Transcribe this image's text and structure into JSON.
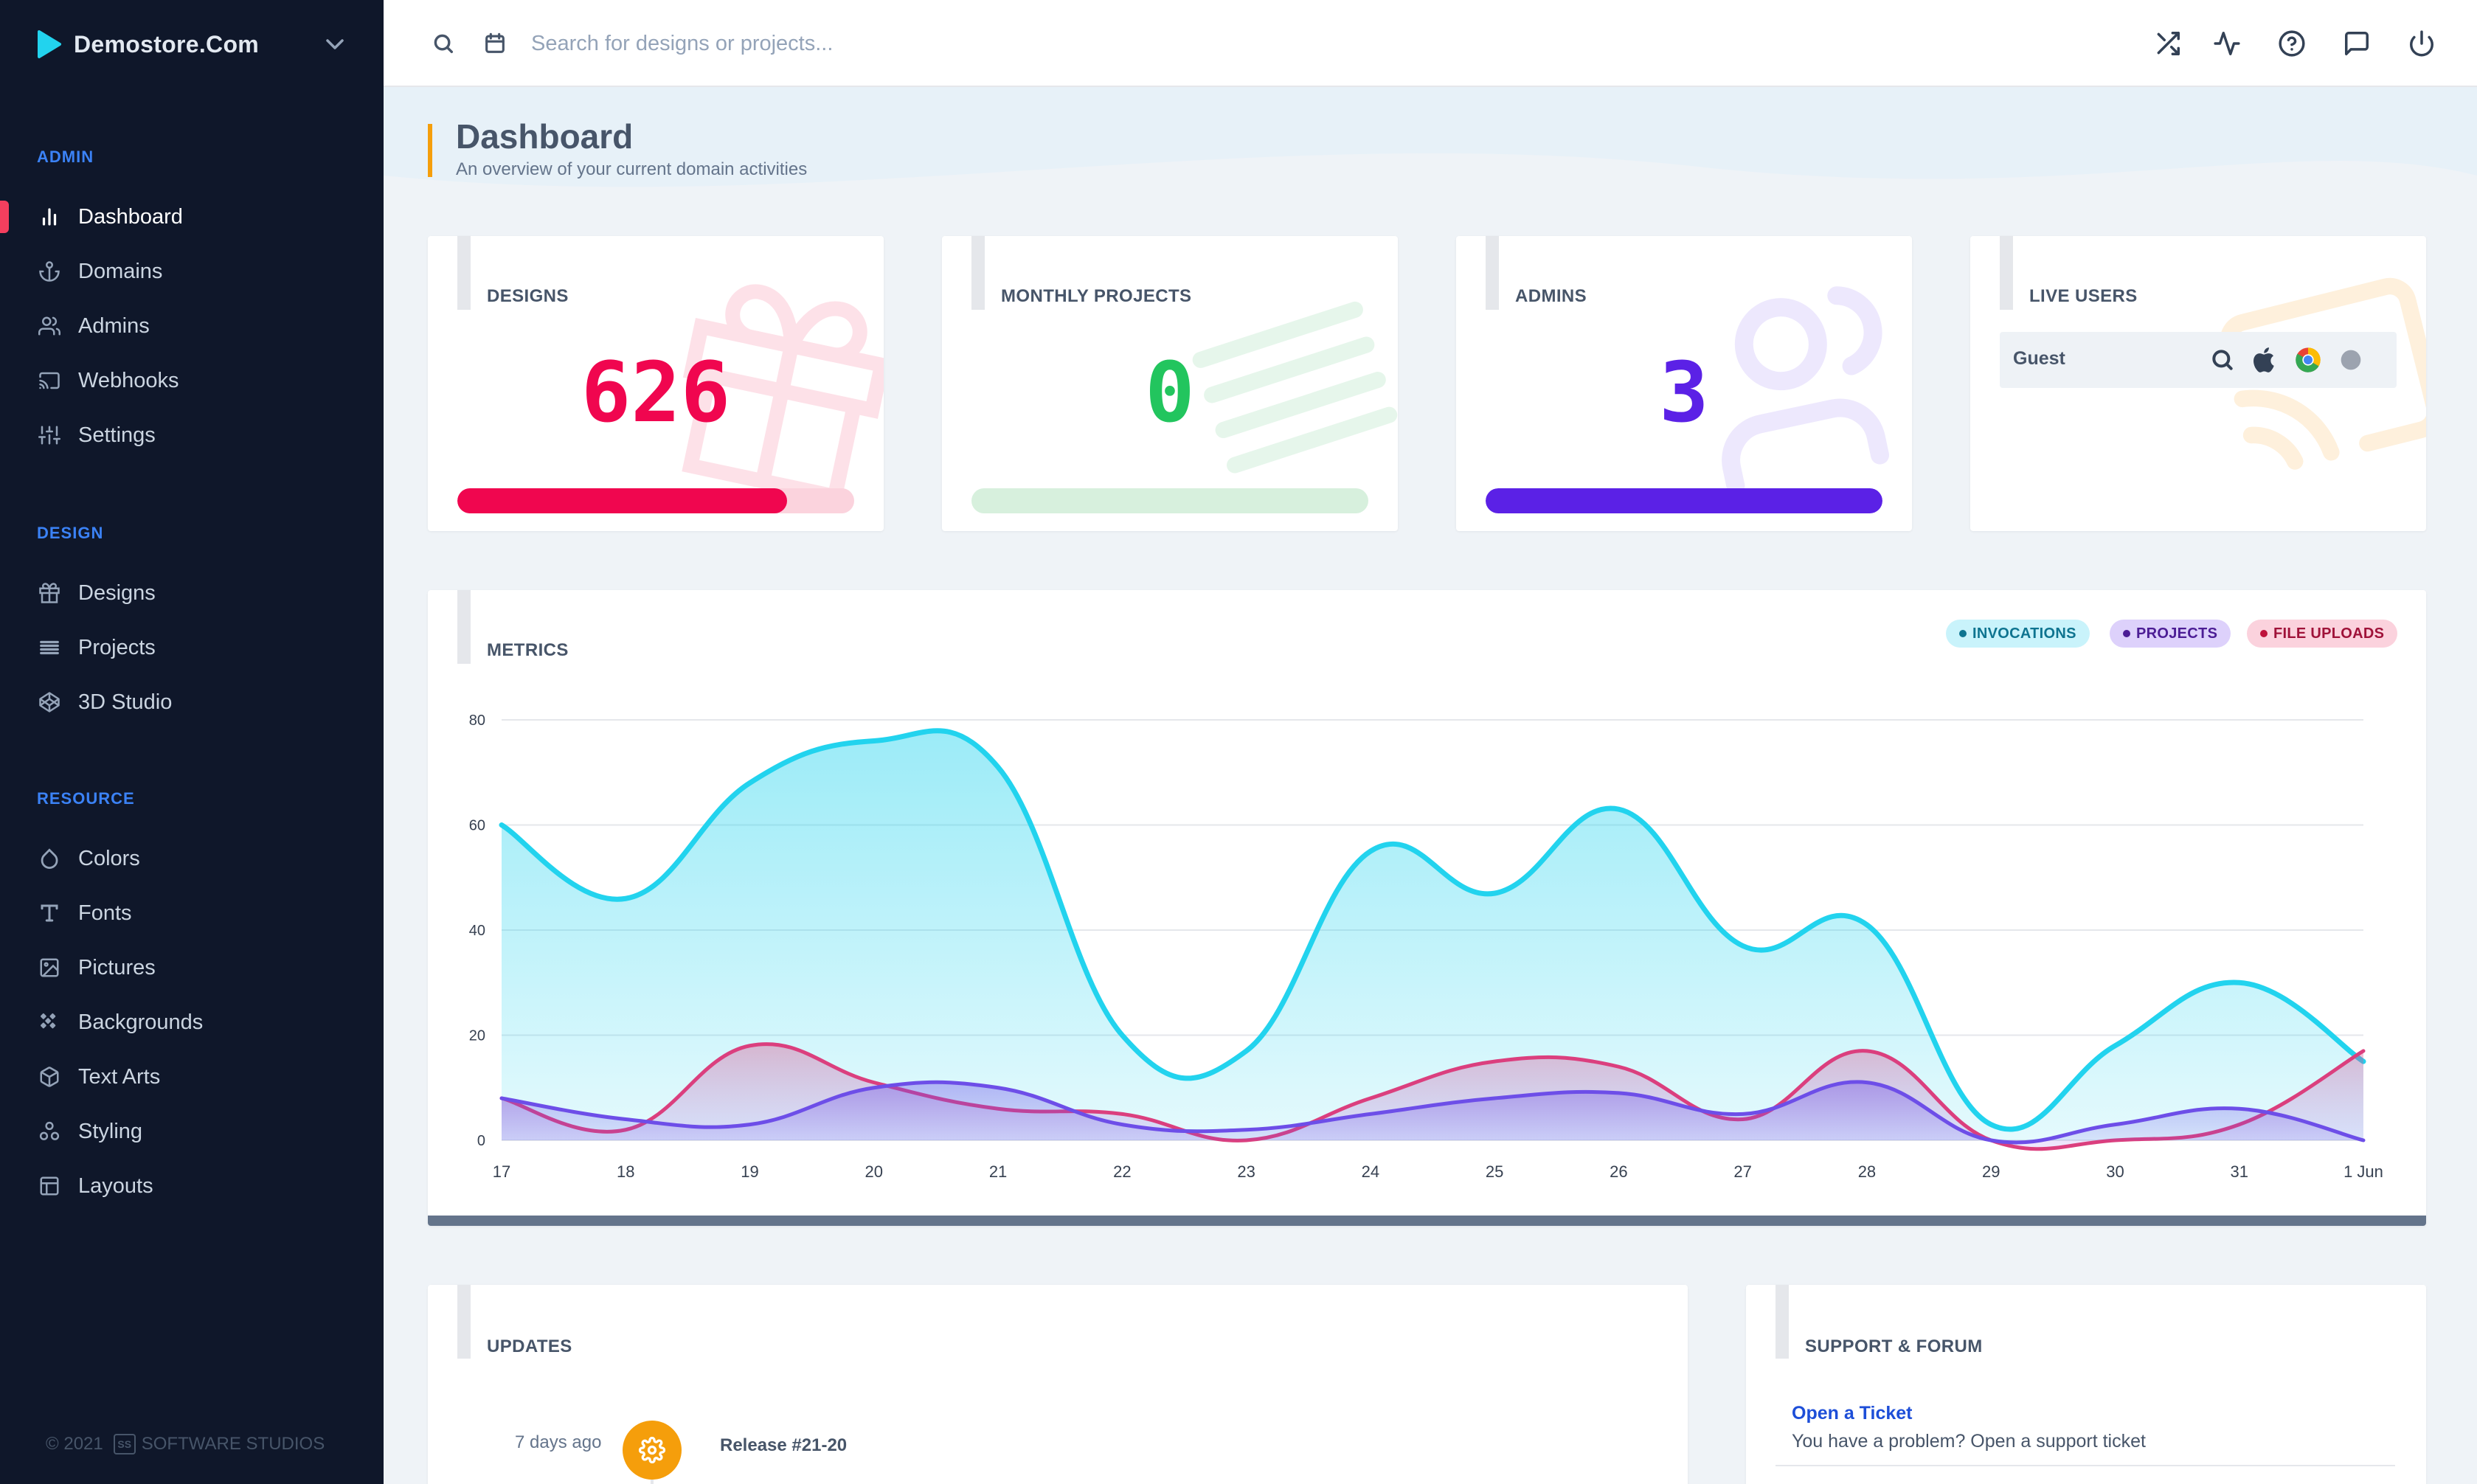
{
  "brand": {
    "name": "Demostore.Com"
  },
  "search": {
    "placeholder": "Search for designs or projects..."
  },
  "sidebar": {
    "sections": [
      {
        "title": "ADMIN",
        "items": [
          {
            "label": "Dashboard",
            "icon": "bar-chart-icon",
            "active": true
          },
          {
            "label": "Domains",
            "icon": "anchor-icon"
          },
          {
            "label": "Admins",
            "icon": "users-icon"
          },
          {
            "label": "Webhooks",
            "icon": "cast-icon"
          },
          {
            "label": "Settings",
            "icon": "sliders-icon"
          }
        ]
      },
      {
        "title": "DESIGN",
        "items": [
          {
            "label": "Designs",
            "icon": "gift-icon"
          },
          {
            "label": "Projects",
            "icon": "list-icon"
          },
          {
            "label": "3D Studio",
            "icon": "codepen-icon"
          }
        ]
      },
      {
        "title": "RESOURCE",
        "items": [
          {
            "label": "Colors",
            "icon": "droplet-icon"
          },
          {
            "label": "Fonts",
            "icon": "type-icon"
          },
          {
            "label": "Pictures",
            "icon": "image-icon"
          },
          {
            "label": "Backgrounds",
            "icon": "pattern-icon"
          },
          {
            "label": "Text Arts",
            "icon": "box-icon"
          },
          {
            "label": "Styling",
            "icon": "shapes-icon"
          },
          {
            "label": "Layouts",
            "icon": "layout-icon"
          }
        ]
      }
    ],
    "footer": {
      "copyright": "© 2021",
      "badge": "SS",
      "company": "SOFTWARE STUDIOS"
    }
  },
  "topbar": {
    "icons": [
      "shuffle-icon",
      "activity-icon",
      "help-circle-icon",
      "message-icon",
      "power-icon"
    ]
  },
  "page": {
    "title": "Dashboard",
    "subtitle": "An overview of your current domain activities"
  },
  "stats": {
    "designs": {
      "title": "DESIGNS",
      "value": "626",
      "progress": 0.83,
      "color": "#f0064f",
      "track": "#fbd3dd"
    },
    "monthly_projects": {
      "title": "MONTHLY PROJECTS",
      "value": "0",
      "progress": 0.0,
      "color": "#22c55e",
      "track": "#d7f0dd"
    },
    "admins": {
      "title": "ADMINS",
      "value": "3",
      "progress": 1.0,
      "color": "#5b21e6",
      "track": "#ddd2fb"
    },
    "live_users": {
      "title": "LIVE USERS",
      "guest": "Guest",
      "icons": [
        "search-icon",
        "apple-icon",
        "chrome-icon",
        "status-dot-icon"
      ]
    }
  },
  "metrics": {
    "title": "METRICS",
    "legend": [
      {
        "label": "INVOCATIONS",
        "bg": "#c9f3fb",
        "fg": "#0e7490",
        "dot": "#0e7490"
      },
      {
        "label": "PROJECTS",
        "bg": "#ddd1fb",
        "fg": "#4c1d95",
        "dot": "#4c1d95"
      },
      {
        "label": "FILE UPLOADS",
        "bg": "#fbd2dd",
        "fg": "#9f1239",
        "dot": "#be123c"
      }
    ]
  },
  "chart_data": {
    "type": "area",
    "x": [
      "17",
      "18",
      "19",
      "20",
      "21",
      "22",
      "23",
      "24",
      "25",
      "26",
      "27",
      "28",
      "29",
      "30",
      "31",
      "1 Jun"
    ],
    "ylim": [
      0,
      80
    ],
    "yticks": [
      0,
      20,
      40,
      60,
      80
    ],
    "grid": true,
    "legend_position": "top-right",
    "series": [
      {
        "name": "INVOCATIONS",
        "color": "#22d3ee",
        "values": [
          60,
          46,
          68,
          76,
          71,
          20,
          17,
          55,
          47,
          63,
          37,
          41,
          3,
          18,
          30,
          15
        ]
      },
      {
        "name": "FILE UPLOADS",
        "color": "#db3f7e",
        "values": [
          8,
          2,
          18,
          11,
          6,
          5,
          0,
          8,
          15,
          14,
          4,
          17,
          0,
          0,
          3,
          17
        ]
      },
      {
        "name": "PROJECTS",
        "color": "#6d4ee8",
        "values": [
          8,
          4,
          3,
          10,
          10,
          3,
          2,
          5,
          8,
          9,
          5,
          11,
          0,
          3,
          6,
          0
        ]
      }
    ]
  },
  "updates": {
    "title": "UPDATES",
    "items": [
      {
        "time": "7 days ago",
        "name": "Release #21-20",
        "icon": "settings-icon"
      }
    ]
  },
  "support": {
    "title": "SUPPORT & FORUM",
    "items": [
      {
        "link": "Open a Ticket",
        "desc": "You have a problem? Open a support ticket"
      }
    ]
  }
}
